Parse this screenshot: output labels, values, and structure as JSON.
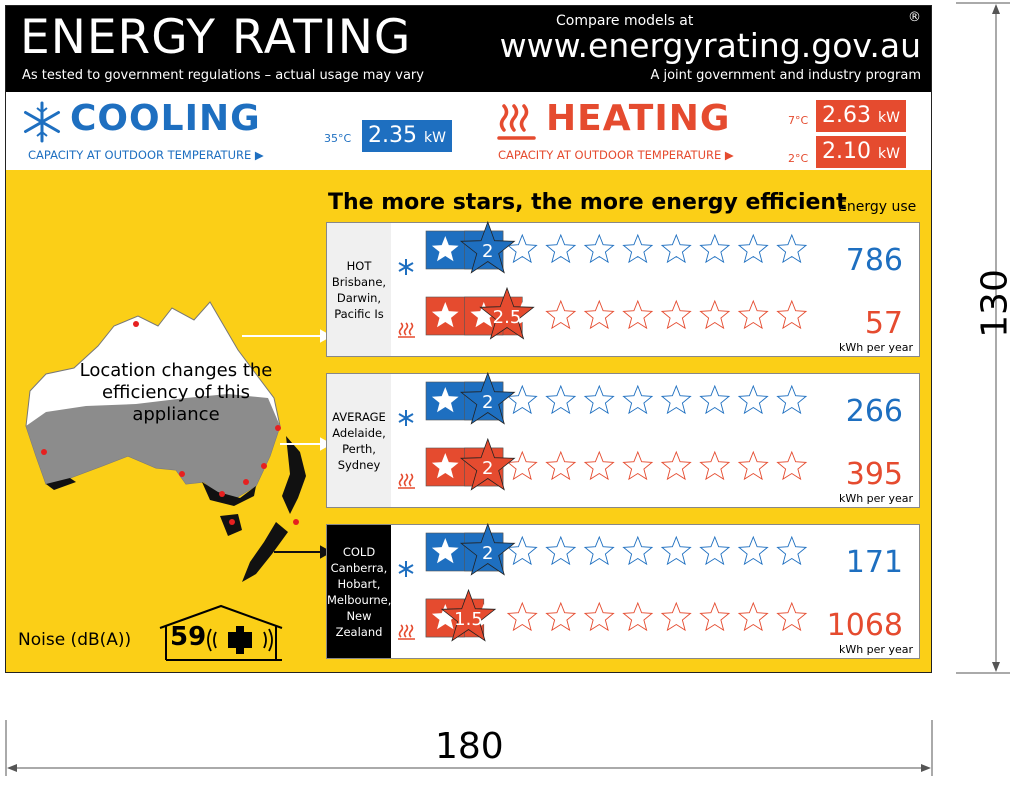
{
  "header": {
    "title": "ENERGY RATING",
    "subtitle": "As tested to government regulations – actual usage may vary",
    "compare_text": "Compare models at",
    "url": "www.energyrating.gov.au",
    "registered_mark": "®",
    "joint_text": "A joint government and industry program"
  },
  "cooling": {
    "title": "COOLING",
    "caption": "CAPACITY AT OUTDOOR TEMPERATURE ▶",
    "temp": "35°C",
    "value": "2.35",
    "unit": "kW",
    "color": "#1e6fc0"
  },
  "heating": {
    "title": "HEATING",
    "caption": "CAPACITY AT OUTDOOR TEMPERATURE ▶",
    "temp1": "7°C",
    "value1": "2.63",
    "temp2": "2°C",
    "value2": "2.10",
    "unit": "kW",
    "color": "#e54b2f"
  },
  "more_stars_text": "The more stars, the more energy efficient",
  "energy_use_label": "Energy use",
  "kwh_label": "kWh per year",
  "map_caption": "Location changes the efficiency of this appliance",
  "noise": {
    "label": "Noise (dB(A))",
    "value": "59"
  },
  "zones": [
    {
      "name": "HOT",
      "cities": [
        "Brisbane,",
        "Darwin,",
        "Pacific Is"
      ],
      "cool_stars": 2,
      "cool_label": "2",
      "cool_use": "786",
      "heat_stars": 2.5,
      "heat_label": "2.5",
      "heat_use": "57"
    },
    {
      "name": "AVERAGE",
      "cities": [
        "Adelaide,",
        "Perth,",
        "Sydney"
      ],
      "cool_stars": 2,
      "cool_label": "2",
      "cool_use": "266",
      "heat_stars": 2,
      "heat_label": "2",
      "heat_use": "395"
    },
    {
      "name": "COLD",
      "cities": [
        "Canberra,",
        "Hobart,",
        "Melbourne,",
        "New Zealand"
      ],
      "cool_stars": 2,
      "cool_label": "2",
      "cool_use": "171",
      "heat_stars": 1.5,
      "heat_label": "1.5",
      "heat_use": "1068"
    }
  ],
  "dimensions": {
    "width_label": "180",
    "height_label": "130"
  }
}
